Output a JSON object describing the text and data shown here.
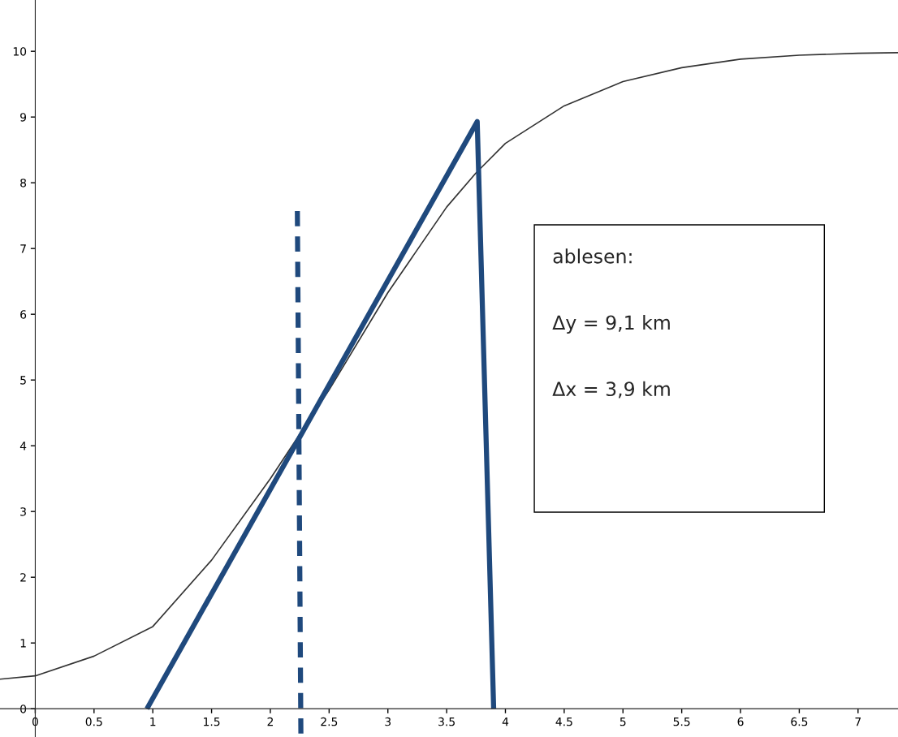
{
  "chart_data": {
    "type": "line",
    "series": [
      {
        "color": "#333333",
        "line_style": "solid",
        "x": [
          -0.3,
          0,
          0.5,
          1,
          1.5,
          2,
          2.5,
          3,
          3.5,
          3.75,
          4,
          4.5,
          5,
          5.5,
          6,
          6.5,
          7,
          7.34
        ],
        "values": [
          0.45,
          0.5,
          0.8,
          1.25,
          2.26,
          3.5,
          4.85,
          6.33,
          7.63,
          8.15,
          8.6,
          9.17,
          9.54,
          9.75,
          9.88,
          9.94,
          9.97,
          9.98
        ]
      },
      {
        "color": "#1f497d",
        "line_style": "solid",
        "x": [
          0.95,
          3.76,
          3.9
        ],
        "values": [
          0,
          8.93,
          0
        ]
      },
      {
        "color": "#1f497d",
        "line_style": "dashed",
        "x": [
          2.23,
          2.26
        ],
        "values": [
          7.57,
          -0.43
        ]
      }
    ],
    "xlim": [
      -0.3,
      7.34
    ],
    "ylim": [
      -0.43,
      10.78
    ],
    "xticks": [
      0,
      {
        "value": 0.5,
        "label": "0.5"
      },
      1,
      {
        "value": 1.5,
        "label": "1.5"
      },
      2,
      {
        "value": 2.5,
        "label": "2.5"
      },
      3,
      {
        "value": 3.5,
        "label": "3.5"
      },
      4,
      {
        "value": 4.5,
        "label": "4.5"
      },
      5,
      {
        "value": 5.5,
        "label": "5.5"
      },
      6,
      {
        "value": 6.5,
        "label": "6.5"
      },
      7
    ],
    "yticks": [
      0,
      1,
      2,
      3,
      4,
      5,
      6,
      7,
      8,
      9,
      10
    ],
    "grid": false,
    "legend": false,
    "annotations": [
      "ablesen:",
      "Δy = 9,1 km",
      "Δx = 3,9 km"
    ]
  }
}
